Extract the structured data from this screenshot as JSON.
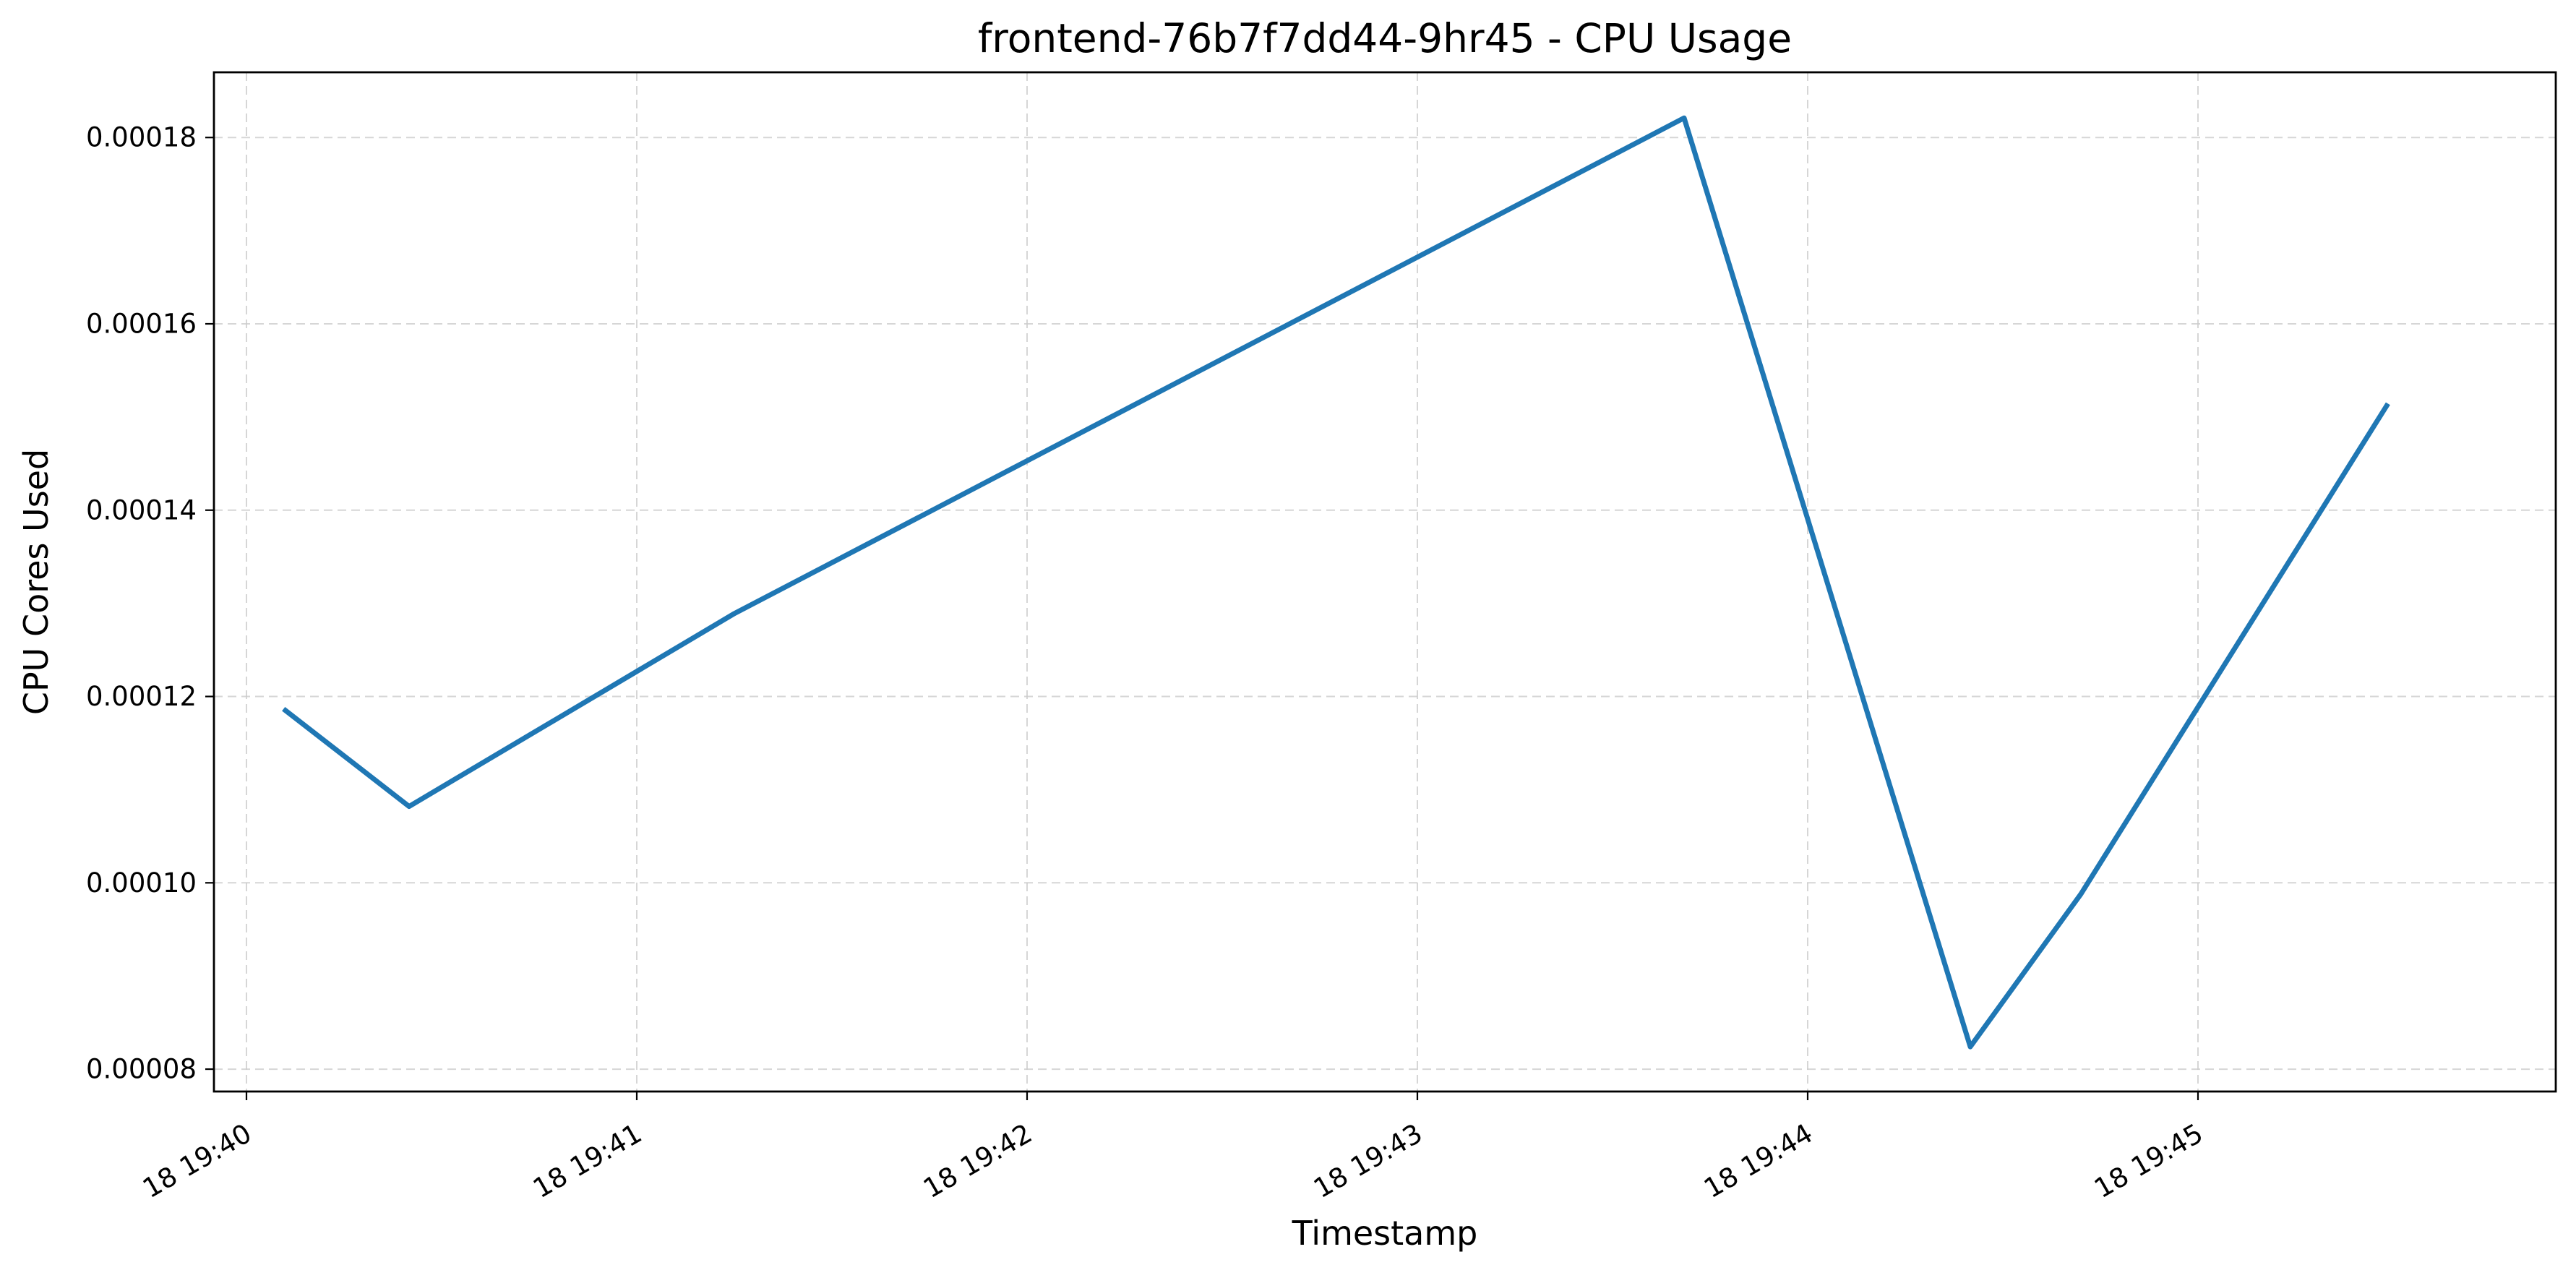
{
  "chart_data": {
    "type": "line",
    "title": "frontend-76b7f7dd44-9hr45 - CPU Usage",
    "xlabel": "Timestamp",
    "ylabel": "CPU Cores Used",
    "x_axis_type": "datetime",
    "x": [
      "19:40:06",
      "19:40:25",
      "19:41:15",
      "19:43:41",
      "19:44:25",
      "19:44:42",
      "19:45:29"
    ],
    "series": [
      {
        "values": [
          0.0001185,
          0.0001082,
          0.0001289,
          0.0001821,
          8.24e-05,
          9.88e-05,
          0.0001512
        ],
        "color": "#1f77b4"
      }
    ],
    "xlim": [
      "19:39:55",
      "19:45:55"
    ],
    "ylim": [
      7.76e-05,
      0.000187
    ],
    "x_ticks": [
      "19:40:00",
      "19:41:00",
      "19:42:00",
      "19:43:00",
      "19:44:00",
      "19:45:00"
    ],
    "x_tick_labels": [
      "18 19:40",
      "18 19:41",
      "18 19:42",
      "18 19:43",
      "18 19:44",
      "18 19:45"
    ],
    "y_ticks": [
      8e-05,
      0.0001,
      0.00012,
      0.00014,
      0.00016,
      0.00018
    ],
    "y_tick_labels": [
      "0.00008",
      "0.00010",
      "0.00012",
      "0.00014",
      "0.00016",
      "0.00018"
    ],
    "grid": true,
    "grid_style": "dashed",
    "legend": false
  }
}
